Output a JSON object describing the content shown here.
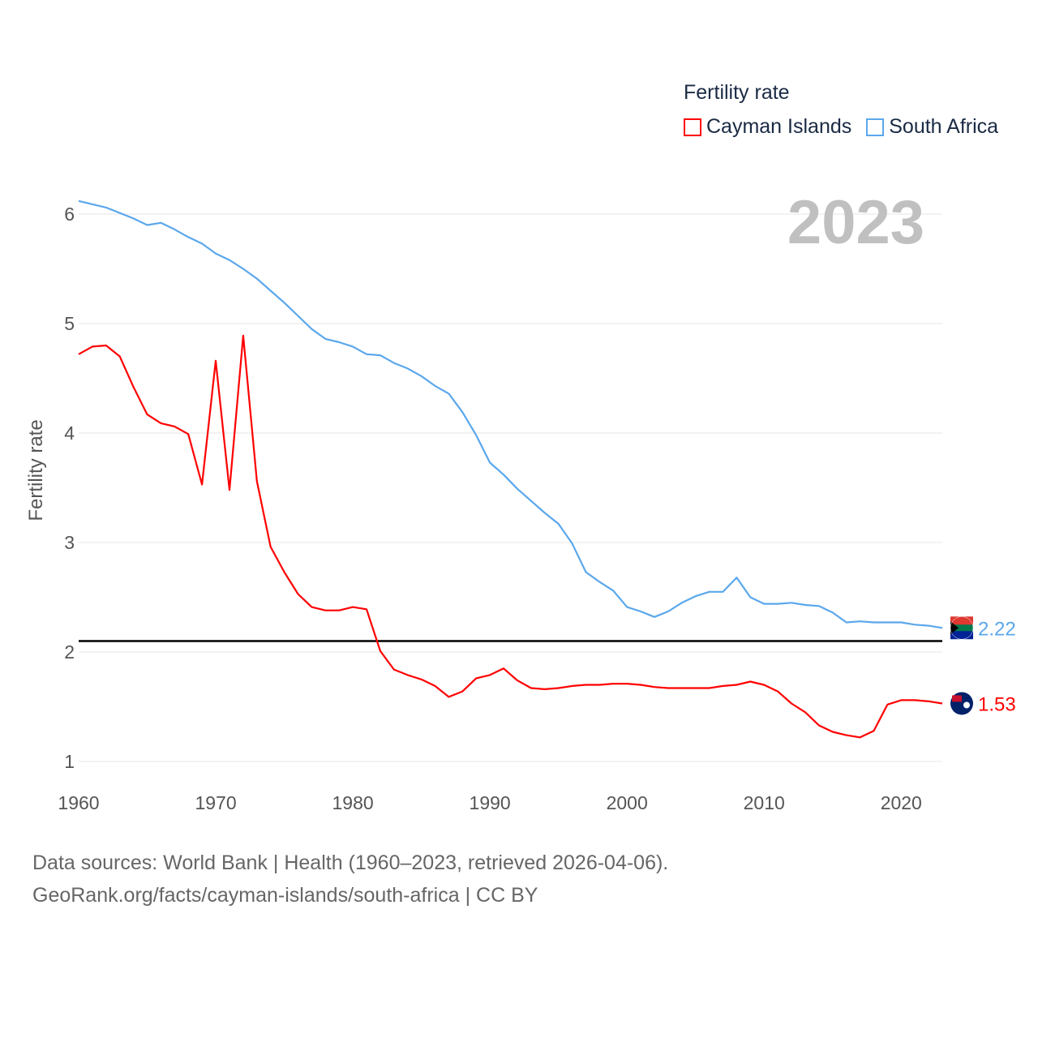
{
  "chart_data": {
    "type": "line",
    "title": "",
    "xlabel": "",
    "ylabel": "Fertility rate",
    "year_label": "2023",
    "legend_title": "Fertility rate",
    "legend_position": "top-right",
    "xlim": [
      1960,
      2023
    ],
    "ylim": [
      0.8,
      6.2
    ],
    "x_ticks": [
      1960,
      1970,
      1980,
      1990,
      2000,
      2010,
      2020
    ],
    "y_ticks": [
      1,
      2,
      3,
      4,
      5,
      6
    ],
    "grid": true,
    "reference_line": 2.1,
    "x": [
      1960,
      1961,
      1962,
      1963,
      1964,
      1965,
      1966,
      1967,
      1968,
      1969,
      1970,
      1971,
      1972,
      1973,
      1974,
      1975,
      1976,
      1977,
      1978,
      1979,
      1980,
      1981,
      1982,
      1983,
      1984,
      1985,
      1986,
      1987,
      1988,
      1989,
      1990,
      1991,
      1992,
      1993,
      1994,
      1995,
      1996,
      1997,
      1998,
      1999,
      2000,
      2001,
      2002,
      2003,
      2004,
      2005,
      2006,
      2007,
      2008,
      2009,
      2010,
      2011,
      2012,
      2013,
      2014,
      2015,
      2016,
      2017,
      2018,
      2019,
      2020,
      2021,
      2022,
      2023
    ],
    "series": [
      {
        "name": "Cayman Islands",
        "color": "#ff0000",
        "end_label": "1.53",
        "values": [
          4.72,
          4.79,
          4.8,
          4.7,
          4.42,
          4.17,
          4.09,
          4.06,
          3.99,
          3.53,
          4.66,
          3.48,
          4.89,
          3.56,
          2.96,
          2.73,
          2.53,
          2.41,
          2.38,
          2.38,
          2.41,
          2.39,
          2.01,
          1.84,
          1.79,
          1.75,
          1.69,
          1.59,
          1.64,
          1.76,
          1.79,
          1.85,
          1.74,
          1.67,
          1.66,
          1.67,
          1.69,
          1.7,
          1.7,
          1.71,
          1.71,
          1.7,
          1.68,
          1.67,
          1.67,
          1.67,
          1.67,
          1.69,
          1.7,
          1.73,
          1.7,
          1.64,
          1.53,
          1.45,
          1.33,
          1.27,
          1.24,
          1.22,
          1.28,
          1.52,
          1.56,
          1.56,
          1.55,
          1.53
        ]
      },
      {
        "name": "South Africa",
        "color": "#5ba7ec",
        "end_label": "2.22",
        "values": [
          6.12,
          6.09,
          6.06,
          6.01,
          5.96,
          5.9,
          5.92,
          5.86,
          5.79,
          5.73,
          5.64,
          5.58,
          5.5,
          5.41,
          5.3,
          5.19,
          5.07,
          4.95,
          4.86,
          4.83,
          4.79,
          4.72,
          4.71,
          4.64,
          4.59,
          4.52,
          4.43,
          4.36,
          4.19,
          3.98,
          3.73,
          3.62,
          3.49,
          3.38,
          3.27,
          3.17,
          2.99,
          2.73,
          2.64,
          2.56,
          2.41,
          2.37,
          2.32,
          2.37,
          2.45,
          2.51,
          2.55,
          2.55,
          2.68,
          2.5,
          2.44,
          2.44,
          2.45,
          2.43,
          2.42,
          2.36,
          2.27,
          2.28,
          2.27,
          2.27,
          2.27,
          2.25,
          2.24,
          2.22
        ]
      }
    ]
  },
  "footer": {
    "line1": "Data sources: World Bank | Health (1960–2023, retrieved 2026-04-06).",
    "line2": "GeoRank.org/facts/cayman-islands/south-africa | CC BY"
  }
}
